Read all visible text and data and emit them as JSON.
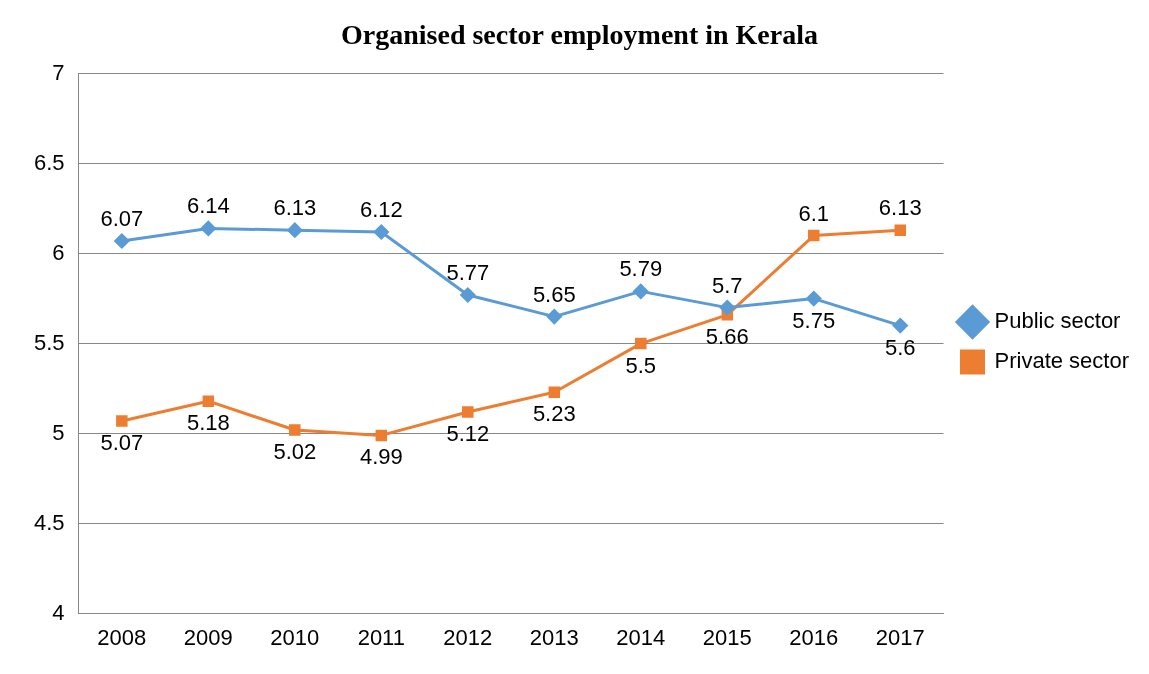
{
  "chart_data": {
    "type": "line",
    "title": "Organised sector employment in Kerala",
    "categories": [
      "2008",
      "2009",
      "2010",
      "2011",
      "2012",
      "2013",
      "2014",
      "2015",
      "2016",
      "2017"
    ],
    "series": [
      {
        "name": "Public sector",
        "color": "#5b9bd5",
        "marker": "diamond",
        "values": [
          6.07,
          6.14,
          6.13,
          6.12,
          5.77,
          5.65,
          5.79,
          5.7,
          5.75,
          5.6
        ]
      },
      {
        "name": "Private sector",
        "color": "#ed7d31",
        "marker": "square",
        "values": [
          5.07,
          5.18,
          5.02,
          4.99,
          5.12,
          5.23,
          5.5,
          5.66,
          6.1,
          6.13
        ]
      }
    ],
    "ylim": [
      4,
      7
    ],
    "yticks": [
      4,
      4.5,
      5,
      5.5,
      6,
      6.5,
      7
    ],
    "grid": "y",
    "legend": "right",
    "data_labels": true
  }
}
